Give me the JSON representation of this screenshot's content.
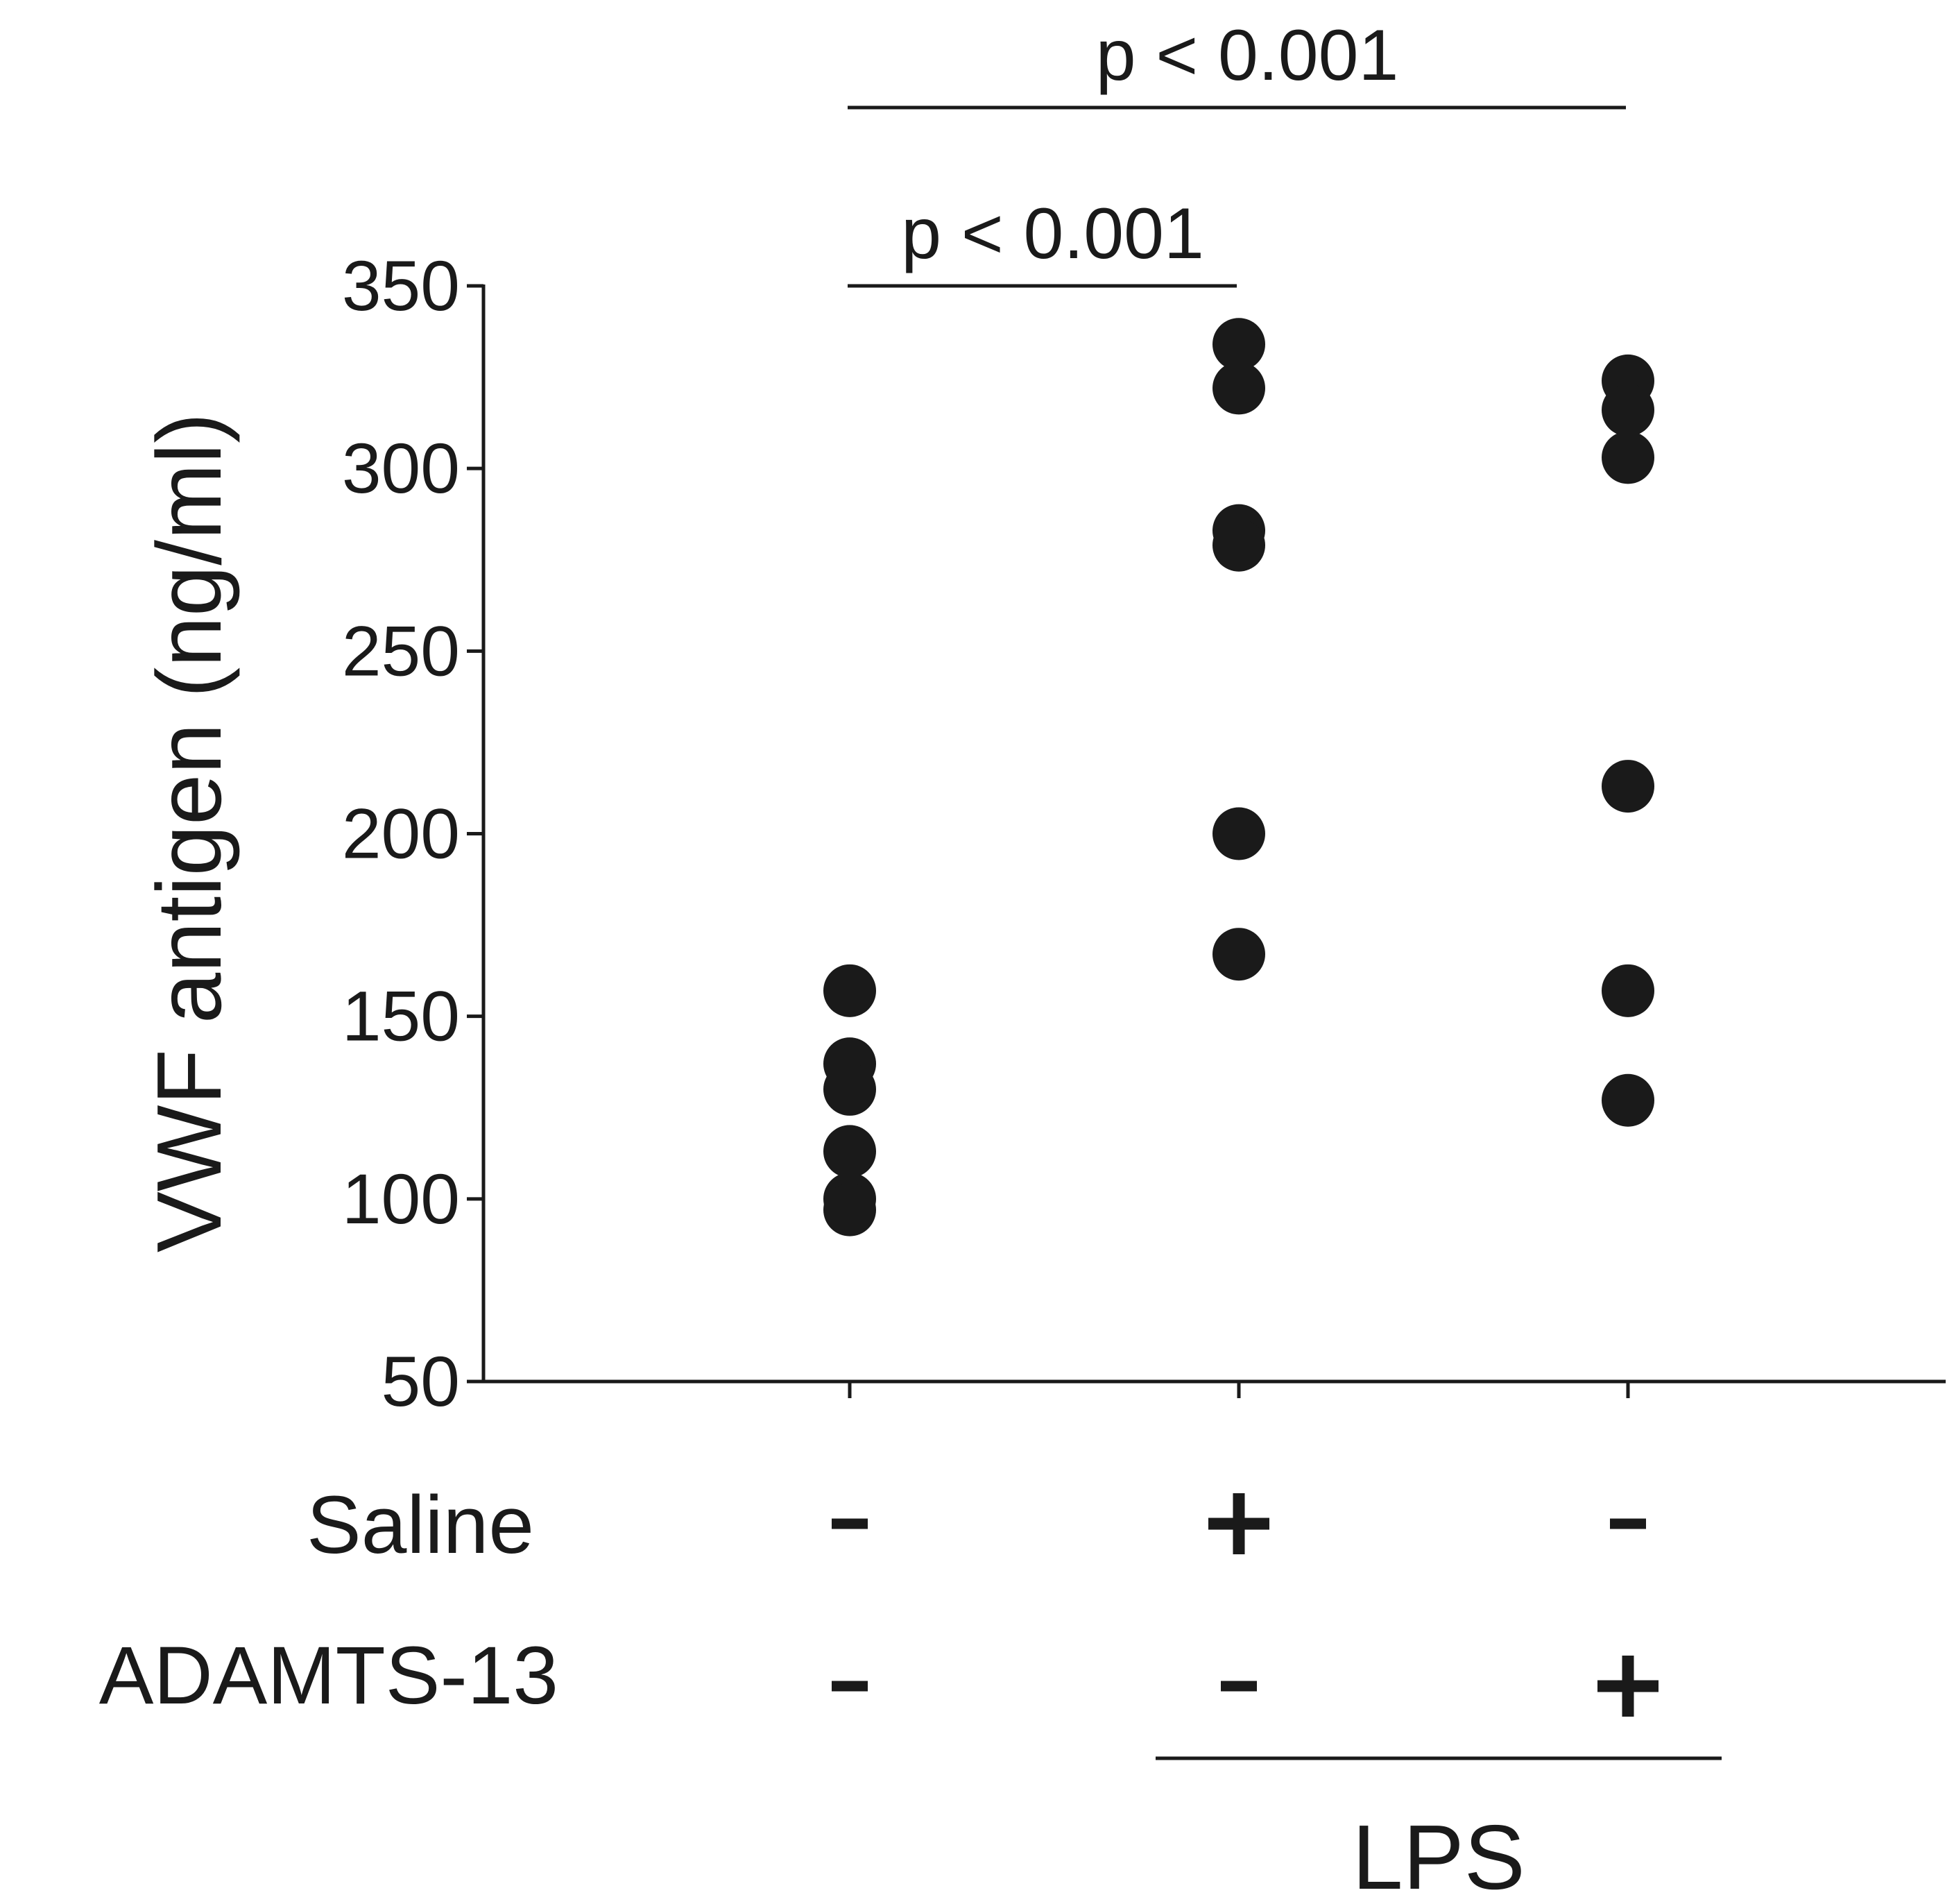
{
  "chart_data": {
    "type": "scatter",
    "title": "",
    "xlabel": "",
    "ylabel": "VWF antigen (ng/ml)",
    "ylim": [
      50,
      350
    ],
    "yticks": [
      50,
      100,
      150,
      200,
      250,
      300,
      350
    ],
    "grid": false,
    "legend": "none",
    "colors": {
      "points": "#1a1a1a",
      "axes": "#1a1a1a"
    },
    "groups": [
      {
        "saline": "-",
        "adamts13": "-",
        "values": [
          157,
          137,
          130,
          113,
          100,
          97
        ]
      },
      {
        "saline": "+",
        "adamts13": "-",
        "values": [
          334,
          322,
          283,
          279,
          200,
          167
        ]
      },
      {
        "saline": "-",
        "adamts13": "+",
        "values": [
          324,
          316,
          303,
          213,
          157,
          127
        ]
      }
    ],
    "row_labels": {
      "saline": "Saline",
      "adamts13": "ADAMTS-13"
    },
    "group_label": "LPS",
    "group_label_spans": [
      1,
      2
    ],
    "significance": [
      {
        "from": 0,
        "to": 1,
        "label": "p < 0.001"
      },
      {
        "from": 0,
        "to": 2,
        "label": "p < 0.001"
      }
    ]
  }
}
